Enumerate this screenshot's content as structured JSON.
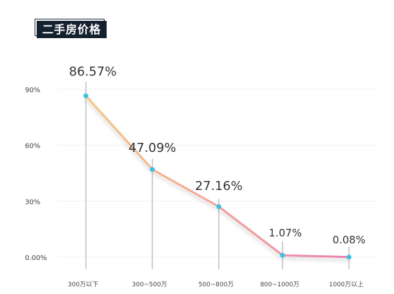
{
  "header": {
    "title": "二手房价格"
  },
  "chart_data": {
    "type": "line",
    "title": "二手房价格",
    "xlabel": "",
    "ylabel": "",
    "categories": [
      "300万以下",
      "300~500万",
      "500~800万",
      "800~1000万",
      "1000万以上"
    ],
    "values": [
      86.57,
      47.09,
      27.16,
      1.07,
      0.08
    ],
    "data_labels": [
      "86.57%",
      "47.09%",
      "27.16%",
      "1.07%",
      "0.08%"
    ],
    "y_ticks": [
      0,
      30,
      60,
      90
    ],
    "y_tick_labels": [
      "0.00%",
      "30%",
      "60%",
      "90%"
    ],
    "ylim": [
      0,
      90
    ],
    "grid": true,
    "legend": "none",
    "colors": {
      "line_start": "#f7c57e",
      "line_end": "#ee7fb2",
      "point": "#3dc0dc",
      "grid": "#f0f0f0",
      "drop_line": "#8a8a92",
      "label": "#333333",
      "tick_label": "#444444"
    }
  }
}
